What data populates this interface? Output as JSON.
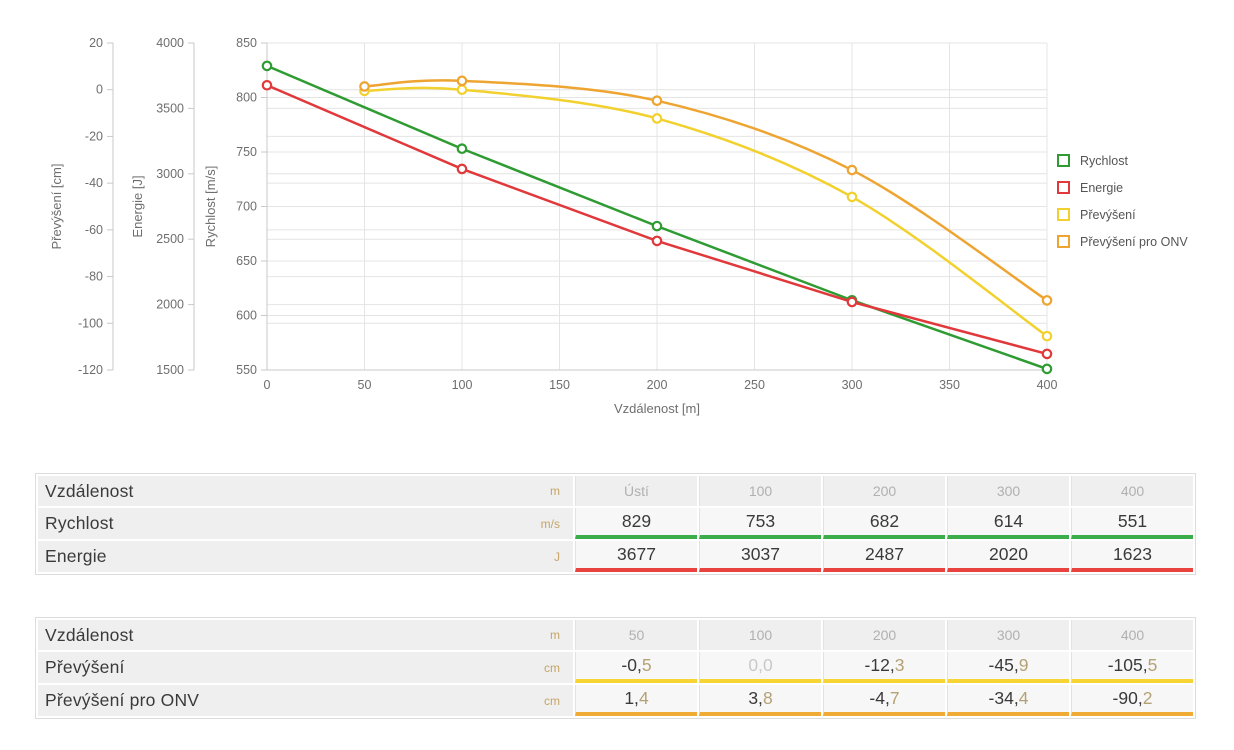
{
  "chart_data": {
    "type": "line",
    "xlabel": "Vzdálenost [m]",
    "x_range": [
      0,
      400
    ],
    "x_ticks": [
      0,
      50,
      100,
      150,
      200,
      250,
      300,
      350,
      400
    ],
    "grid": true,
    "legend_position": "right",
    "y_axes": [
      {
        "id": "prevyseni",
        "label": "Převýšení [cm]",
        "range": [
          -120,
          20
        ],
        "ticks": [
          20,
          0,
          -20,
          -40,
          -60,
          -80,
          -100,
          -120
        ]
      },
      {
        "id": "energie",
        "label": "Energie [J]",
        "range": [
          1500,
          4000
        ],
        "ticks": [
          4000,
          3500,
          3000,
          2500,
          2000,
          1500
        ]
      },
      {
        "id": "rychlost",
        "label": "Rychlost [m/s]",
        "range": [
          550,
          850
        ],
        "ticks": [
          850,
          800,
          750,
          700,
          650,
          600,
          550
        ]
      }
    ],
    "series": [
      {
        "id": "rychlost",
        "name": "Rychlost",
        "axis": "rychlost",
        "color": "#2f9b33",
        "smooth": false,
        "x": [
          0,
          100,
          200,
          300,
          400
        ],
        "y": [
          829,
          753,
          682,
          614,
          551
        ]
      },
      {
        "id": "energie",
        "name": "Energie",
        "axis": "energie",
        "color": "#e1383b",
        "smooth": false,
        "x": [
          0,
          100,
          200,
          300,
          400
        ],
        "y": [
          3677,
          3037,
          2487,
          2020,
          1623
        ]
      },
      {
        "id": "prevyseni",
        "name": "Převýšení",
        "axis": "prevyseni",
        "color": "#f2d12f",
        "smooth": true,
        "x": [
          50,
          100,
          200,
          300,
          400
        ],
        "y": [
          -0.5,
          0.0,
          -12.3,
          -45.9,
          -105.5
        ]
      },
      {
        "id": "prevyseni-onv",
        "name": "Převýšení pro ONV",
        "axis": "prevyseni",
        "color": "#eea431",
        "smooth": true,
        "x": [
          50,
          100,
          200,
          300,
          400
        ],
        "y": [
          1.4,
          3.8,
          -4.7,
          -34.4,
          -90.2
        ]
      }
    ]
  },
  "tables": [
    {
      "header": {
        "label": "Vzdálenost",
        "unit": "m",
        "cols": [
          "Ústí",
          "100",
          "200",
          "300",
          "400"
        ]
      },
      "rows": [
        {
          "label": "Rychlost",
          "unit": "m/s",
          "color": "#3bae4b",
          "values": [
            {
              "whole": "829"
            },
            {
              "whole": "753"
            },
            {
              "whole": "682"
            },
            {
              "whole": "614"
            },
            {
              "whole": "551"
            }
          ]
        },
        {
          "label": "Energie",
          "unit": "J",
          "color": "#e8433f",
          "values": [
            {
              "whole": "3677"
            },
            {
              "whole": "3037"
            },
            {
              "whole": "2487"
            },
            {
              "whole": "2020"
            },
            {
              "whole": "1623"
            }
          ]
        }
      ]
    },
    {
      "header": {
        "label": "Vzdálenost",
        "unit": "m",
        "cols": [
          "50",
          "100",
          "200",
          "300",
          "400"
        ]
      },
      "rows": [
        {
          "label": "Převýšení",
          "unit": "cm",
          "color": "#f5d434",
          "values": [
            {
              "whole": "-0,",
              "frac": "5"
            },
            {
              "whole": "0,",
              "frac": "0",
              "muted": true
            },
            {
              "whole": "-12,",
              "frac": "3"
            },
            {
              "whole": "-45,",
              "frac": "9"
            },
            {
              "whole": "-105,",
              "frac": "5"
            }
          ]
        },
        {
          "label": "Převýšení pro ONV",
          "unit": "cm",
          "color": "#f0ab35",
          "values": [
            {
              "whole": "1,",
              "frac": "4"
            },
            {
              "whole": "3,",
              "frac": "8"
            },
            {
              "whole": "-4,",
              "frac": "7"
            },
            {
              "whole": "-34,",
              "frac": "4"
            },
            {
              "whole": "-90,",
              "frac": "2"
            }
          ]
        }
      ]
    }
  ]
}
